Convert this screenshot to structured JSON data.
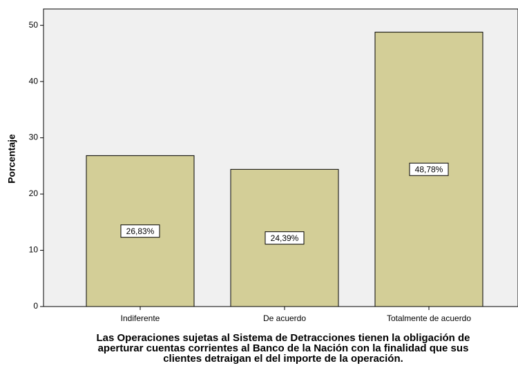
{
  "chart_data": {
    "type": "bar",
    "ylabel": "Porcentaje",
    "xlabel": [
      "Las Operaciones sujetas al Sistema de Detracciones tienen la obligación de",
      "aperturar cuentas corrientes al Banco de la Nación con la finalidad que sus",
      "clientes detraigan el del importe de la operación."
    ],
    "categories": [
      "Indiferente",
      "De acuerdo",
      "Totalmente de acuerdo"
    ],
    "values": [
      26.83,
      24.39,
      48.78
    ],
    "value_labels": [
      "26,83%",
      "24,39%",
      "48,78%"
    ],
    "color": "#d3ce97",
    "ylim": [
      0,
      52.9
    ],
    "yticks": [
      0,
      10,
      20,
      30,
      40,
      50
    ]
  }
}
